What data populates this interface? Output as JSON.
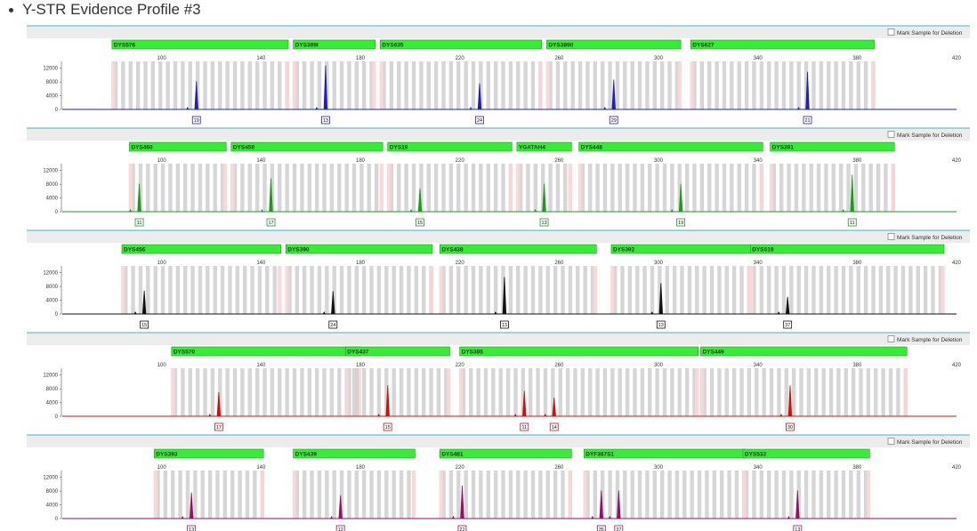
{
  "page": {
    "title": "Y-STR Evidence Profile #3",
    "mark_label": "Mark Sample for Deletion"
  },
  "chart_data": [
    {
      "type": "electropherogram",
      "color": "#1f1fbf",
      "x_ticks": [
        100,
        140,
        180,
        220,
        260,
        300,
        340,
        380,
        420
      ],
      "xlim": [
        60,
        420
      ],
      "y_ticks": [
        0,
        4000,
        8000,
        12000
      ],
      "ylim": [
        0,
        14000
      ],
      "markers": [
        {
          "name": "DYS576",
          "start": 80,
          "end": 151
        },
        {
          "name": "DYS389I",
          "start": 153,
          "end": 186
        },
        {
          "name": "DYS635",
          "start": 188,
          "end": 253
        },
        {
          "name": "DYS389II",
          "start": 255,
          "end": 309
        },
        {
          "name": "DYS627",
          "start": 313,
          "end": 387
        }
      ],
      "peaks": [
        {
          "x": 114,
          "height": 8200,
          "allele": "19"
        },
        {
          "x": 166,
          "height": 12800,
          "allele": "13"
        },
        {
          "x": 228,
          "height": 7600,
          "allele": "24"
        },
        {
          "x": 282,
          "height": 8700,
          "allele": "29"
        },
        {
          "x": 360,
          "height": 11000,
          "allele": "21"
        }
      ]
    },
    {
      "type": "electropherogram",
      "color": "#1a9c1a",
      "x_ticks": [
        100,
        140,
        180,
        220,
        260,
        300,
        340,
        380,
        420
      ],
      "xlim": [
        60,
        420
      ],
      "y_ticks": [
        0,
        4000,
        8000,
        12000
      ],
      "ylim": [
        0,
        14000
      ],
      "markers": [
        {
          "name": "DYS460",
          "start": 87,
          "end": 126
        },
        {
          "name": "DYS458",
          "start": 128,
          "end": 189
        },
        {
          "name": "DYS19",
          "start": 191,
          "end": 241
        },
        {
          "name": "YGATAH4",
          "start": 243,
          "end": 265
        },
        {
          "name": "DYS448",
          "start": 268,
          "end": 342
        },
        {
          "name": "DYS391",
          "start": 345,
          "end": 395
        }
      ],
      "peaks": [
        {
          "x": 91,
          "height": 8200,
          "allele": "11"
        },
        {
          "x": 144,
          "height": 9800,
          "allele": "17"
        },
        {
          "x": 204,
          "height": 6800,
          "allele": "15"
        },
        {
          "x": 254,
          "height": 8200,
          "allele": "13"
        },
        {
          "x": 309,
          "height": 8000,
          "allele": "19"
        },
        {
          "x": 378,
          "height": 10800,
          "allele": "11"
        }
      ]
    },
    {
      "type": "electropherogram",
      "color": "#111111",
      "x_ticks": [
        100,
        140,
        180,
        220,
        260,
        300,
        340,
        380,
        420
      ],
      "xlim": [
        60,
        420
      ],
      "y_ticks": [
        0,
        4000,
        8000,
        12000
      ],
      "ylim": [
        0,
        14000
      ],
      "markers": [
        {
          "name": "DYS456",
          "start": 84,
          "end": 148
        },
        {
          "name": "DYS390",
          "start": 150,
          "end": 209
        },
        {
          "name": "DYS438",
          "start": 212,
          "end": 275
        },
        {
          "name": "DYS392",
          "start": 281,
          "end": 337
        },
        {
          "name": "DYS518",
          "start": 337,
          "end": 415
        }
      ],
      "peaks": [
        {
          "x": 93,
          "height": 6800,
          "allele": "15"
        },
        {
          "x": 169,
          "height": 6600,
          "allele": "24"
        },
        {
          "x": 238,
          "height": 10800,
          "allele": "13"
        },
        {
          "x": 301,
          "height": 9000,
          "allele": "13"
        },
        {
          "x": 352,
          "height": 5000,
          "allele": "37"
        }
      ]
    },
    {
      "type": "electropherogram",
      "color": "#cc1111",
      "x_ticks": [
        100,
        140,
        180,
        220,
        260,
        300,
        340,
        380,
        420
      ],
      "xlim": [
        60,
        420
      ],
      "y_ticks": [
        0,
        4000,
        8000,
        12000
      ],
      "ylim": [
        0,
        14000
      ],
      "markers": [
        {
          "name": "DYS570",
          "start": 104,
          "end": 180
        },
        {
          "name": "DYS437",
          "start": 174,
          "end": 216
        },
        {
          "name": "DYS385",
          "start": 220,
          "end": 316
        },
        {
          "name": "DYS449",
          "start": 317,
          "end": 400
        }
      ],
      "peaks": [
        {
          "x": 123,
          "height": 7000,
          "allele": "17"
        },
        {
          "x": 191,
          "height": 9000,
          "allele": "15"
        },
        {
          "x": 246,
          "height": 7400,
          "allele": "11"
        },
        {
          "x": 258,
          "height": 5400,
          "allele": "14"
        },
        {
          "x": 353,
          "height": 9000,
          "allele": "30"
        }
      ]
    },
    {
      "type": "electropherogram",
      "color": "#8e1266",
      "x_ticks": [
        100,
        140,
        180,
        220,
        260,
        300,
        340,
        380,
        420
      ],
      "xlim": [
        60,
        420
      ],
      "y_ticks": [
        0,
        4000,
        8000,
        12000
      ],
      "ylim": [
        0,
        14000
      ],
      "markers": [
        {
          "name": "DYS393",
          "start": 97,
          "end": 141
        },
        {
          "name": "DYS439",
          "start": 153,
          "end": 202
        },
        {
          "name": "DYS481",
          "start": 212,
          "end": 265
        },
        {
          "name": "DYF387S1",
          "start": 270,
          "end": 335
        },
        {
          "name": "DYS533",
          "start": 334,
          "end": 385
        }
      ],
      "peaks": [
        {
          "x": 112,
          "height": 7600,
          "allele": "13"
        },
        {
          "x": 172,
          "height": 6800,
          "allele": "12"
        },
        {
          "x": 221,
          "height": 9600,
          "allele": "22"
        },
        {
          "x": 277,
          "height": 8200,
          "allele": "35"
        },
        {
          "x": 284,
          "height": 8200,
          "allele": "37"
        },
        {
          "x": 356,
          "height": 8200,
          "allele": "13"
        }
      ]
    }
  ]
}
